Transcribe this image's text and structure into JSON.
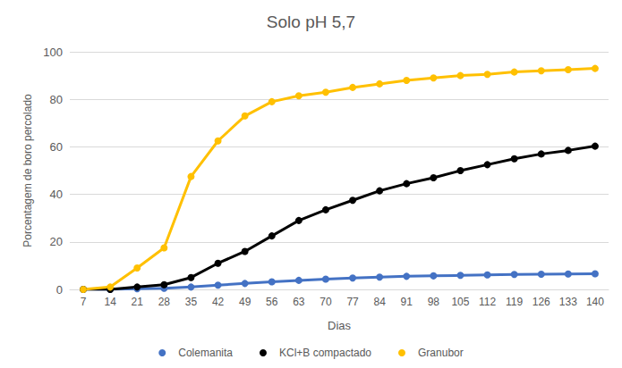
{
  "chart_data": {
    "type": "line",
    "title": "Solo pH 5,7",
    "x_label": "Dias",
    "y_label": "Porcentagem de boro percolado",
    "categories": [
      "7",
      "14",
      "21",
      "28",
      "35",
      "42",
      "49",
      "56",
      "63",
      "70",
      "77",
      "84",
      "91",
      "98",
      "105",
      "112",
      "119",
      "126",
      "133",
      "140"
    ],
    "series": [
      {
        "name": "Colemanita",
        "color": "#4472c4",
        "values": [
          0,
          0,
          0.3,
          0.5,
          1,
          1.8,
          2.5,
          3.2,
          3.8,
          4.3,
          4.8,
          5.2,
          5.5,
          5.7,
          5.9,
          6.1,
          6.3,
          6.4,
          6.5,
          6.6
        ]
      },
      {
        "name": "KCl+B compactado",
        "color": "#000000",
        "values": [
          0,
          0,
          1,
          2,
          5,
          11,
          16,
          22.5,
          29,
          33.5,
          37.5,
          41.5,
          44.5,
          47,
          50,
          52.5,
          55,
          57,
          58.5,
          60.3
        ]
      },
      {
        "name": "Granubor",
        "color": "#ffc000",
        "values": [
          0,
          1,
          9,
          17.5,
          47.5,
          62.5,
          73,
          79,
          81.5,
          83,
          85,
          86.5,
          88,
          89,
          90,
          90.5,
          91.5,
          92,
          92.5,
          93
        ]
      }
    ],
    "ylim": [
      0,
      100
    ],
    "yticks": [
      0,
      20,
      40,
      60,
      80,
      100
    ],
    "grid": true,
    "legend": "bottom",
    "marker": "circle"
  }
}
